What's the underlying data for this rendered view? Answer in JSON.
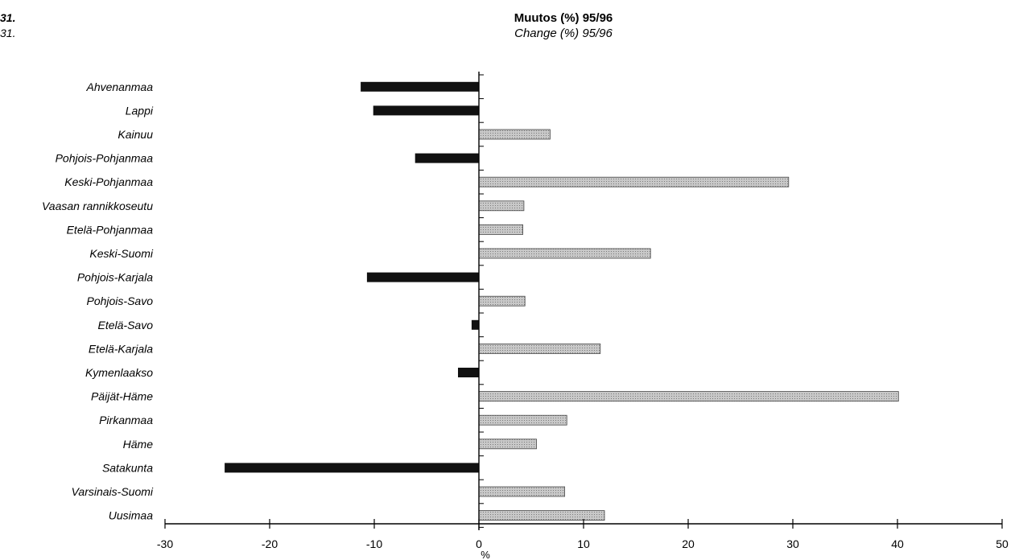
{
  "figure": {
    "id_line1": "31.",
    "id_line2": "31."
  },
  "chart_data": {
    "type": "bar",
    "orientation": "horizontal",
    "title": "Muutos (%) 95/96",
    "subtitle": "Change (%) 95/96",
    "xlabel": "%",
    "xlim": [
      -30,
      50
    ],
    "xticks": [
      -30,
      -20,
      -10,
      0,
      10,
      20,
      30,
      40,
      50
    ],
    "grid": false,
    "categories": [
      "Ahvenanmaa",
      "Lappi",
      "Kainuu",
      "Pohjois-Pohjanmaa",
      "Keski-Pohjanmaa",
      "Vaasan rannikkoseutu",
      "Etelä-Pohjanmaa",
      "Keski-Suomi",
      "Pohjois-Karjala",
      "Pohjois-Savo",
      "Etelä-Savo",
      "Etelä-Karjala",
      "Kymenlaakso",
      "Päijät-Häme",
      "Pirkanmaa",
      "Häme",
      "Satakunta",
      "Varsinais-Suomi",
      "Uusimaa"
    ],
    "values": [
      -11.3,
      -10.1,
      6.8,
      -6.1,
      29.6,
      4.3,
      4.2,
      16.4,
      -10.7,
      4.4,
      -0.7,
      11.6,
      -2.0,
      40.1,
      8.4,
      5.5,
      -24.3,
      8.2,
      12.0
    ],
    "colors": {
      "negative": "#111111",
      "positive": "#bdbdbd"
    }
  }
}
